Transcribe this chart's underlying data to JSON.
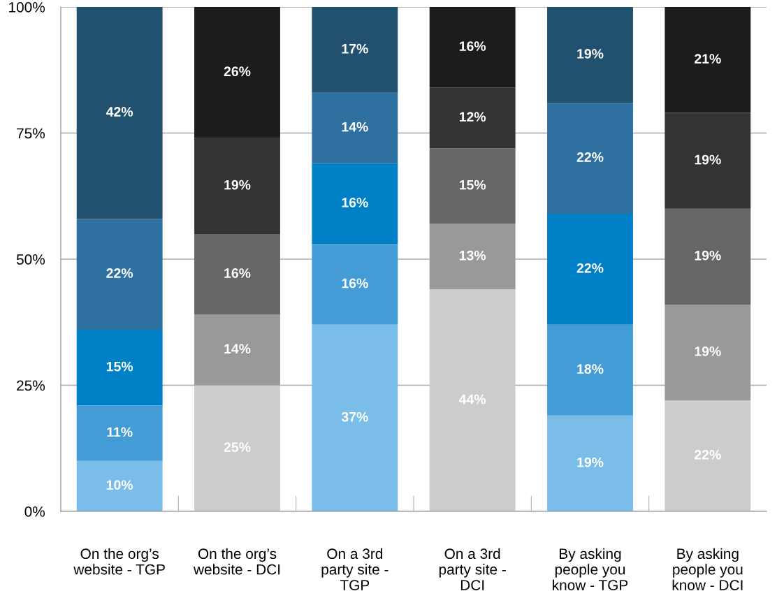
{
  "chart_data": {
    "type": "bar",
    "stacked": true,
    "categories": [
      "On the org’s\nwebsite - TGP",
      "On the org’s\nwebsite - DCI",
      "On a 3rd\nparty site -\nTGP",
      "On a 3rd\nparty site -\nDCI",
      "By asking\npeople you\nknow - TGP",
      "By asking\npeople you\nknow - DCI"
    ],
    "series": [
      {
        "colors": [
          "#7abde8",
          "#cccccc",
          "#7abde8",
          "#cccccc",
          "#7abde8",
          "#cccccc"
        ],
        "values": [
          10,
          25,
          37,
          44,
          19,
          22
        ],
        "value_labels": [
          "10%",
          "25%",
          "37%",
          "44%",
          "19%",
          "22%"
        ]
      },
      {
        "colors": [
          "#449cd6",
          "#999999",
          "#449cd6",
          "#999999",
          "#449cd6",
          "#999999"
        ],
        "values": [
          11,
          14,
          16,
          13,
          18,
          19
        ],
        "value_labels": [
          "11%",
          "14%",
          "16%",
          "13%",
          "18%",
          "19%"
        ]
      },
      {
        "colors": [
          "#0080c6",
          "#666666",
          "#0080c6",
          "#666666",
          "#0080c6",
          "#666666"
        ],
        "values": [
          15,
          16,
          16,
          15,
          22,
          19
        ],
        "value_labels": [
          "15%",
          "16%",
          "16%",
          "15%",
          "22%",
          "19%"
        ]
      },
      {
        "colors": [
          "#2e71a0",
          "#333333",
          "#2e71a0",
          "#333333",
          "#2e71a0",
          "#333333"
        ],
        "values": [
          22,
          19,
          14,
          12,
          22,
          19
        ],
        "value_labels": [
          "22%",
          "19%",
          "14%",
          "12%",
          "22%",
          "19%"
        ]
      },
      {
        "colors": [
          "#22506f",
          "#1c1c1c",
          "#22506f",
          "#1c1c1c",
          "#22506f",
          "#1c1c1c"
        ],
        "values": [
          42,
          26,
          17,
          16,
          19,
          21
        ],
        "value_labels": [
          "42%",
          "26%",
          "17%",
          "16%",
          "19%",
          "21%"
        ]
      }
    ],
    "ylim": [
      0,
      100
    ],
    "yticks": [
      {
        "value": 0,
        "label": "0%"
      },
      {
        "value": 25,
        "label": "25%"
      },
      {
        "value": 50,
        "label": "50%"
      },
      {
        "value": 75,
        "label": "75%"
      },
      {
        "value": 100,
        "label": "100%"
      }
    ],
    "grid": "y",
    "legend": false
  }
}
